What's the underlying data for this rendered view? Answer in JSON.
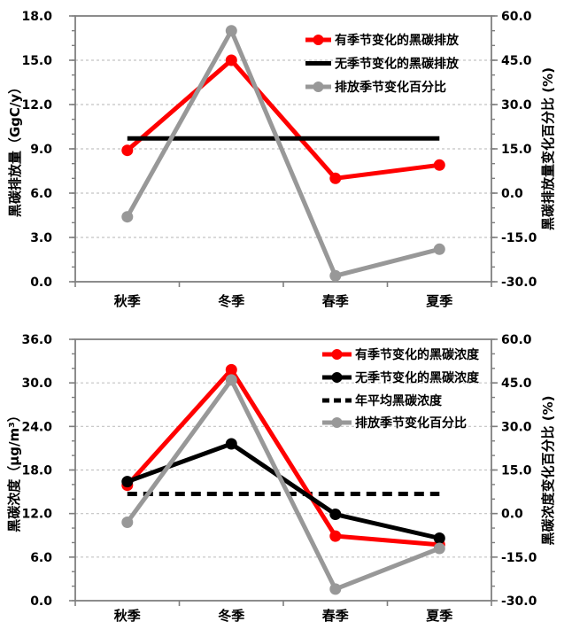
{
  "figure": {
    "background": "#ffffff",
    "description": "两幅季节变化折线图：黑碳排放与黑碳浓度"
  },
  "style": {
    "series_red": "#ff0000",
    "series_black": "#000000",
    "series_gray": "#989898",
    "grid_color": "#c3c3c3",
    "frame_color": "#7f7f7f",
    "text_color": "#000000"
  },
  "chart_data": [
    {
      "name": "black-carbon-emission-chart",
      "type": "line",
      "categories": [
        "秋季",
        "冬季",
        "春季",
        "夏季"
      ],
      "left_axis": {
        "title": "黑碳排放量（GgC/y）",
        "min": 0,
        "max": 18,
        "step": 3,
        "tick_labels": [
          "0.0",
          "3.0",
          "6.0",
          "9.0",
          "12.0",
          "15.0",
          "18.0"
        ]
      },
      "right_axis": {
        "title": "黑碳排放量变化百分比 (%)",
        "min": -30,
        "max": 60,
        "step": 15,
        "tick_labels": [
          "-30.0",
          "-15.0",
          "0.0",
          "15.0",
          "30.0",
          "45.0",
          "60.0"
        ]
      },
      "grid": "horizontal-dashed",
      "legend_position": "inside-top-right",
      "series": [
        {
          "name": "有季节变化的黑碳排放",
          "color_key": "series_red",
          "axis": "left",
          "values": [
            8.9,
            15.0,
            7.0,
            7.9
          ],
          "marker": true,
          "dash": null
        },
        {
          "name": "无季节变化的黑碳排放",
          "color_key": "series_black",
          "axis": "left",
          "values": [
            9.7,
            9.7,
            9.7,
            9.7
          ],
          "marker": false,
          "dash": null
        },
        {
          "name": "排放季节变化百分比",
          "color_key": "series_gray",
          "axis": "right",
          "values": [
            -8.0,
            55.0,
            -28.0,
            -19.0
          ],
          "marker": true,
          "dash": null
        }
      ],
      "draw_order": [
        0,
        1,
        2
      ]
    },
    {
      "name": "black-carbon-concentration-chart",
      "type": "line",
      "categories": [
        "秋季",
        "冬季",
        "春季",
        "夏季"
      ],
      "left_axis": {
        "title": "黑碳浓度（μg/m³）",
        "min": 0,
        "max": 36,
        "step": 6,
        "tick_labels": [
          "0.0",
          "6.0",
          "12.0",
          "18.0",
          "24.0",
          "30.0",
          "36.0"
        ]
      },
      "right_axis": {
        "title": "黑碳浓度变化百分比 (%)",
        "min": -30,
        "max": 60,
        "step": 15,
        "tick_labels": [
          "-30.0",
          "-15.0",
          "0.0",
          "15.0",
          "30.0",
          "45.0",
          "60.0"
        ]
      },
      "grid": "horizontal-dashed",
      "legend_position": "inside-top-right",
      "series": [
        {
          "name": "有季节变化的黑碳浓度",
          "color_key": "series_red",
          "axis": "left",
          "values": [
            15.9,
            31.8,
            8.9,
            7.7
          ],
          "marker": true,
          "dash": null
        },
        {
          "name": "无季节变化的黑碳浓度",
          "color_key": "series_black",
          "axis": "left",
          "values": [
            16.4,
            21.6,
            11.9,
            8.6
          ],
          "marker": true,
          "dash": null
        },
        {
          "name": "年平均黑碳浓度",
          "color_key": "series_black",
          "axis": "left",
          "values": [
            14.7,
            14.7,
            14.7,
            14.7
          ],
          "marker": false,
          "dash": "11 7"
        },
        {
          "name": "排放季节变化百分比",
          "color_key": "series_gray",
          "axis": "right",
          "values": [
            -3.0,
            46.0,
            -26.0,
            -12.0
          ],
          "marker": true,
          "dash": null
        }
      ],
      "draw_order": [
        2,
        0,
        1,
        3
      ]
    }
  ]
}
